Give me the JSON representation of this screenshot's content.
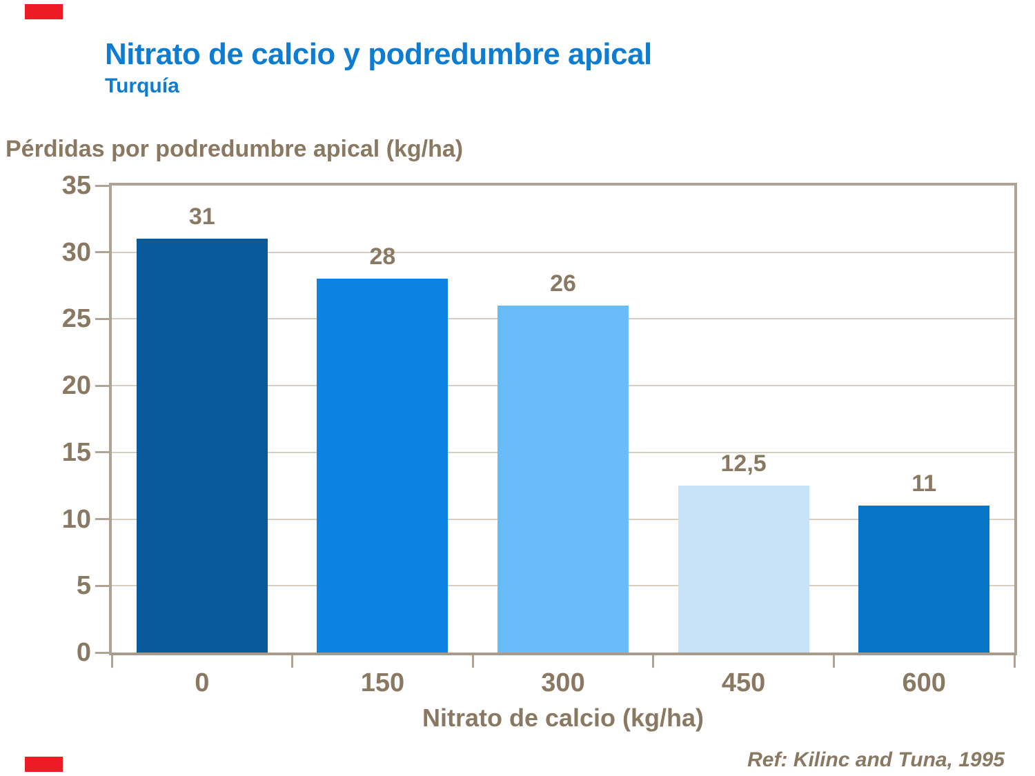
{
  "slide": {
    "title": "Nitrato de calcio y podredumbre apical",
    "subtitle": "Turquía",
    "reference": "Ref: Kilinc and Tuna, 1995",
    "title_color": "#0e7cd0",
    "accent_color": "#ed1c24"
  },
  "chart_data": {
    "type": "bar",
    "title": "",
    "ylabel": "Pérdidas por podredumbre apical (kg/ha)",
    "xlabel": "Nitrato de calcio (kg/ha)",
    "categories": [
      "0",
      "150",
      "300",
      "450",
      "600"
    ],
    "values": [
      31,
      28,
      26,
      12.5,
      11
    ],
    "value_labels": [
      "31",
      "28",
      "26",
      "12,5",
      "11"
    ],
    "bar_colors": [
      "#085a9a",
      "#0c82e2",
      "#68bcfa",
      "#c8e2f8",
      "#0674c7"
    ],
    "ylim": [
      0,
      35
    ],
    "ytick_step": 5,
    "ytick_labels": [
      "35",
      "30",
      "25",
      "20",
      "15",
      "10",
      "5",
      "0"
    ],
    "grid": true,
    "legend": false,
    "text_color": "#8a7962",
    "axis_color": "#afa395",
    "grid_color": "#d5cdc0"
  }
}
